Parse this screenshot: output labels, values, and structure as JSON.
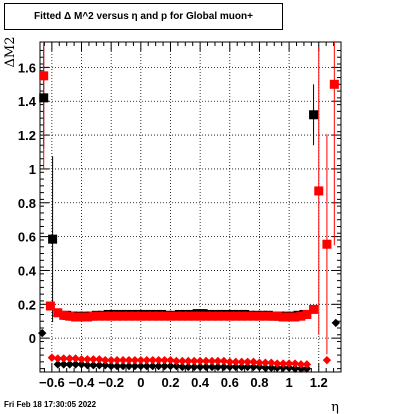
{
  "title": "Fitted Δ M^2 versus η and p for Global muon+",
  "footer": "Fri Feb 18 17:30:05 2022",
  "chart_data": {
    "type": "scatter",
    "title": "Fitted Δ M^2 versus η and p for Global muon+",
    "xlabel": "η",
    "ylabel": "ΔM2",
    "xlim": [
      -0.68,
      1.35
    ],
    "ylim": [
      -0.2,
      1.75
    ],
    "x_ticks": [
      -0.6,
      -0.4,
      -0.2,
      0,
      0.2,
      0.4,
      0.6,
      0.8,
      1,
      1.2
    ],
    "x_tick_labels": [
      "−0.6",
      "−0.4",
      "−0.2",
      "0",
      "0.2",
      "0.4",
      "0.6",
      "0.8",
      "1",
      "1.2"
    ],
    "y_ticks": [
      0,
      0.2,
      0.4,
      0.6,
      0.8,
      1,
      1.2,
      1.4,
      1.6
    ],
    "y_tick_labels": [
      "0",
      "0.2",
      "0.4",
      "0.6",
      "0.8",
      "1",
      "1.2",
      "1.4",
      "1.6"
    ],
    "grid": true,
    "series": [
      {
        "marker": "square",
        "color": "#000000",
        "points": [
          {
            "x": -0.655,
            "y": 1.42,
            "err": 0.3
          },
          {
            "x": -0.595,
            "y": 0.585,
            "err": 0.49
          },
          {
            "x": -0.5,
            "y": 0.135
          },
          {
            "x": -0.46,
            "y": 0.13
          },
          {
            "x": -0.42,
            "y": 0.13
          },
          {
            "x": -0.38,
            "y": 0.13
          },
          {
            "x": -0.34,
            "y": 0.13
          },
          {
            "x": -0.3,
            "y": 0.135
          },
          {
            "x": -0.26,
            "y": 0.135
          },
          {
            "x": -0.22,
            "y": 0.14
          },
          {
            "x": -0.18,
            "y": 0.14
          },
          {
            "x": -0.14,
            "y": 0.14
          },
          {
            "x": -0.1,
            "y": 0.14
          },
          {
            "x": -0.06,
            "y": 0.14
          },
          {
            "x": -0.02,
            "y": 0.14
          },
          {
            "x": 0.02,
            "y": 0.14
          },
          {
            "x": 0.06,
            "y": 0.14
          },
          {
            "x": 0.1,
            "y": 0.14
          },
          {
            "x": 0.14,
            "y": 0.14
          },
          {
            "x": 0.18,
            "y": 0.135
          },
          {
            "x": 0.22,
            "y": 0.135
          },
          {
            "x": 0.26,
            "y": 0.14
          },
          {
            "x": 0.3,
            "y": 0.14
          },
          {
            "x": 0.34,
            "y": 0.14
          },
          {
            "x": 0.38,
            "y": 0.145
          },
          {
            "x": 0.42,
            "y": 0.145
          },
          {
            "x": 0.46,
            "y": 0.14
          },
          {
            "x": 0.5,
            "y": 0.14
          },
          {
            "x": 0.54,
            "y": 0.14
          },
          {
            "x": 0.58,
            "y": 0.14
          },
          {
            "x": 0.62,
            "y": 0.14
          },
          {
            "x": 0.66,
            "y": 0.14
          },
          {
            "x": 0.7,
            "y": 0.14
          },
          {
            "x": 0.74,
            "y": 0.135
          },
          {
            "x": 0.78,
            "y": 0.135
          },
          {
            "x": 0.82,
            "y": 0.135
          },
          {
            "x": 0.86,
            "y": 0.135
          },
          {
            "x": 0.9,
            "y": 0.13
          },
          {
            "x": 0.94,
            "y": 0.13
          },
          {
            "x": 0.98,
            "y": 0.13
          },
          {
            "x": 1.02,
            "y": 0.13
          },
          {
            "x": 1.06,
            "y": 0.135
          },
          {
            "x": 1.1,
            "y": 0.14
          },
          {
            "x": 1.165,
            "y": 1.32,
            "err": 0.18
          }
        ]
      },
      {
        "marker": "square",
        "color": "#ff0000",
        "points": [
          {
            "x": -0.655,
            "y": 1.55,
            "err": 0.55
          },
          {
            "x": -0.61,
            "y": 0.19
          },
          {
            "x": -0.56,
            "y": 0.15
          },
          {
            "x": -0.52,
            "y": 0.135
          },
          {
            "x": -0.48,
            "y": 0.13
          },
          {
            "x": -0.44,
            "y": 0.125
          },
          {
            "x": -0.4,
            "y": 0.125
          },
          {
            "x": -0.36,
            "y": 0.125
          },
          {
            "x": -0.32,
            "y": 0.13
          },
          {
            "x": -0.28,
            "y": 0.13
          },
          {
            "x": -0.24,
            "y": 0.13
          },
          {
            "x": -0.2,
            "y": 0.13
          },
          {
            "x": -0.16,
            "y": 0.13
          },
          {
            "x": -0.12,
            "y": 0.13
          },
          {
            "x": -0.08,
            "y": 0.13
          },
          {
            "x": -0.04,
            "y": 0.13
          },
          {
            "x": 0.0,
            "y": 0.13
          },
          {
            "x": 0.04,
            "y": 0.13
          },
          {
            "x": 0.08,
            "y": 0.13
          },
          {
            "x": 0.12,
            "y": 0.13
          },
          {
            "x": 0.16,
            "y": 0.13
          },
          {
            "x": 0.2,
            "y": 0.13
          },
          {
            "x": 0.24,
            "y": 0.13
          },
          {
            "x": 0.28,
            "y": 0.13
          },
          {
            "x": 0.32,
            "y": 0.13
          },
          {
            "x": 0.36,
            "y": 0.13
          },
          {
            "x": 0.4,
            "y": 0.13
          },
          {
            "x": 0.44,
            "y": 0.13
          },
          {
            "x": 0.48,
            "y": 0.13
          },
          {
            "x": 0.52,
            "y": 0.13
          },
          {
            "x": 0.56,
            "y": 0.13
          },
          {
            "x": 0.6,
            "y": 0.13
          },
          {
            "x": 0.64,
            "y": 0.13
          },
          {
            "x": 0.68,
            "y": 0.13
          },
          {
            "x": 0.72,
            "y": 0.13
          },
          {
            "x": 0.76,
            "y": 0.13
          },
          {
            "x": 0.8,
            "y": 0.13
          },
          {
            "x": 0.84,
            "y": 0.13
          },
          {
            "x": 0.88,
            "y": 0.13
          },
          {
            "x": 0.92,
            "y": 0.13
          },
          {
            "x": 0.96,
            "y": 0.125
          },
          {
            "x": 1.0,
            "y": 0.125
          },
          {
            "x": 1.04,
            "y": 0.125
          },
          {
            "x": 1.08,
            "y": 0.13
          },
          {
            "x": 1.12,
            "y": 0.14
          },
          {
            "x": 1.165,
            "y": 0.17
          },
          {
            "x": 1.2,
            "y": 0.87,
            "err": 0.85
          },
          {
            "x": 1.255,
            "y": 0.555,
            "err": 0.65
          },
          {
            "x": 1.305,
            "y": 1.5,
            "err": 0.95
          }
        ]
      },
      {
        "marker": "diamond",
        "color": "#000000",
        "points": [
          {
            "x": -0.665,
            "y": 0.03
          },
          {
            "x": -0.56,
            "y": -0.155
          },
          {
            "x": -0.52,
            "y": -0.155
          },
          {
            "x": -0.48,
            "y": -0.155
          },
          {
            "x": -0.44,
            "y": -0.155
          },
          {
            "x": -0.4,
            "y": -0.155
          },
          {
            "x": -0.36,
            "y": -0.16
          },
          {
            "x": -0.32,
            "y": -0.16
          },
          {
            "x": -0.28,
            "y": -0.16
          },
          {
            "x": -0.24,
            "y": -0.16
          },
          {
            "x": -0.2,
            "y": -0.165
          },
          {
            "x": -0.16,
            "y": -0.165
          },
          {
            "x": -0.12,
            "y": -0.165
          },
          {
            "x": -0.08,
            "y": -0.165
          },
          {
            "x": -0.04,
            "y": -0.165
          },
          {
            "x": 0.0,
            "y": -0.165
          },
          {
            "x": 0.04,
            "y": -0.165
          },
          {
            "x": 0.08,
            "y": -0.165
          },
          {
            "x": 0.12,
            "y": -0.165
          },
          {
            "x": 0.16,
            "y": -0.165
          },
          {
            "x": 0.2,
            "y": -0.165
          },
          {
            "x": 0.24,
            "y": -0.165
          },
          {
            "x": 0.28,
            "y": -0.17
          },
          {
            "x": 0.32,
            "y": -0.17
          },
          {
            "x": 0.36,
            "y": -0.17
          },
          {
            "x": 0.4,
            "y": -0.17
          },
          {
            "x": 0.44,
            "y": -0.17
          },
          {
            "x": 0.48,
            "y": -0.17
          },
          {
            "x": 0.52,
            "y": -0.17
          },
          {
            "x": 0.56,
            "y": -0.17
          },
          {
            "x": 0.6,
            "y": -0.17
          },
          {
            "x": 0.64,
            "y": -0.17
          },
          {
            "x": 0.68,
            "y": -0.17
          },
          {
            "x": 0.72,
            "y": -0.17
          },
          {
            "x": 0.76,
            "y": -0.17
          },
          {
            "x": 0.8,
            "y": -0.17
          },
          {
            "x": 0.84,
            "y": -0.175
          },
          {
            "x": 0.88,
            "y": -0.175
          },
          {
            "x": 0.92,
            "y": -0.175
          },
          {
            "x": 0.96,
            "y": -0.175
          },
          {
            "x": 1.0,
            "y": -0.175
          },
          {
            "x": 1.04,
            "y": -0.18
          },
          {
            "x": 1.08,
            "y": -0.18
          },
          {
            "x": 1.12,
            "y": -0.18
          },
          {
            "x": 1.315,
            "y": 0.09
          }
        ]
      },
      {
        "marker": "diamond",
        "color": "#ff0000",
        "points": [
          {
            "x": -0.6,
            "y": -0.115
          },
          {
            "x": -0.56,
            "y": -0.12
          },
          {
            "x": -0.52,
            "y": -0.12
          },
          {
            "x": -0.48,
            "y": -0.12
          },
          {
            "x": -0.44,
            "y": -0.12
          },
          {
            "x": -0.4,
            "y": -0.125
          },
          {
            "x": -0.36,
            "y": -0.125
          },
          {
            "x": -0.32,
            "y": -0.125
          },
          {
            "x": -0.28,
            "y": -0.125
          },
          {
            "x": -0.24,
            "y": -0.13
          },
          {
            "x": -0.2,
            "y": -0.13
          },
          {
            "x": -0.16,
            "y": -0.13
          },
          {
            "x": -0.12,
            "y": -0.13
          },
          {
            "x": -0.08,
            "y": -0.13
          },
          {
            "x": -0.04,
            "y": -0.13
          },
          {
            "x": 0.0,
            "y": -0.13
          },
          {
            "x": 0.04,
            "y": -0.13
          },
          {
            "x": 0.08,
            "y": -0.13
          },
          {
            "x": 0.12,
            "y": -0.13
          },
          {
            "x": 0.16,
            "y": -0.13
          },
          {
            "x": 0.2,
            "y": -0.13
          },
          {
            "x": 0.24,
            "y": -0.135
          },
          {
            "x": 0.28,
            "y": -0.135
          },
          {
            "x": 0.32,
            "y": -0.135
          },
          {
            "x": 0.36,
            "y": -0.135
          },
          {
            "x": 0.4,
            "y": -0.135
          },
          {
            "x": 0.44,
            "y": -0.135
          },
          {
            "x": 0.48,
            "y": -0.135
          },
          {
            "x": 0.52,
            "y": -0.135
          },
          {
            "x": 0.56,
            "y": -0.135
          },
          {
            "x": 0.6,
            "y": -0.14
          },
          {
            "x": 0.64,
            "y": -0.14
          },
          {
            "x": 0.68,
            "y": -0.14
          },
          {
            "x": 0.72,
            "y": -0.14
          },
          {
            "x": 0.76,
            "y": -0.14
          },
          {
            "x": 0.8,
            "y": -0.145
          },
          {
            "x": 0.84,
            "y": -0.145
          },
          {
            "x": 0.88,
            "y": -0.145
          },
          {
            "x": 0.92,
            "y": -0.15
          },
          {
            "x": 0.96,
            "y": -0.15
          },
          {
            "x": 1.0,
            "y": -0.15
          },
          {
            "x": 1.04,
            "y": -0.15
          },
          {
            "x": 1.08,
            "y": -0.155
          },
          {
            "x": 1.12,
            "y": -0.155
          },
          {
            "x": 1.255,
            "y": -0.13
          }
        ]
      }
    ]
  }
}
